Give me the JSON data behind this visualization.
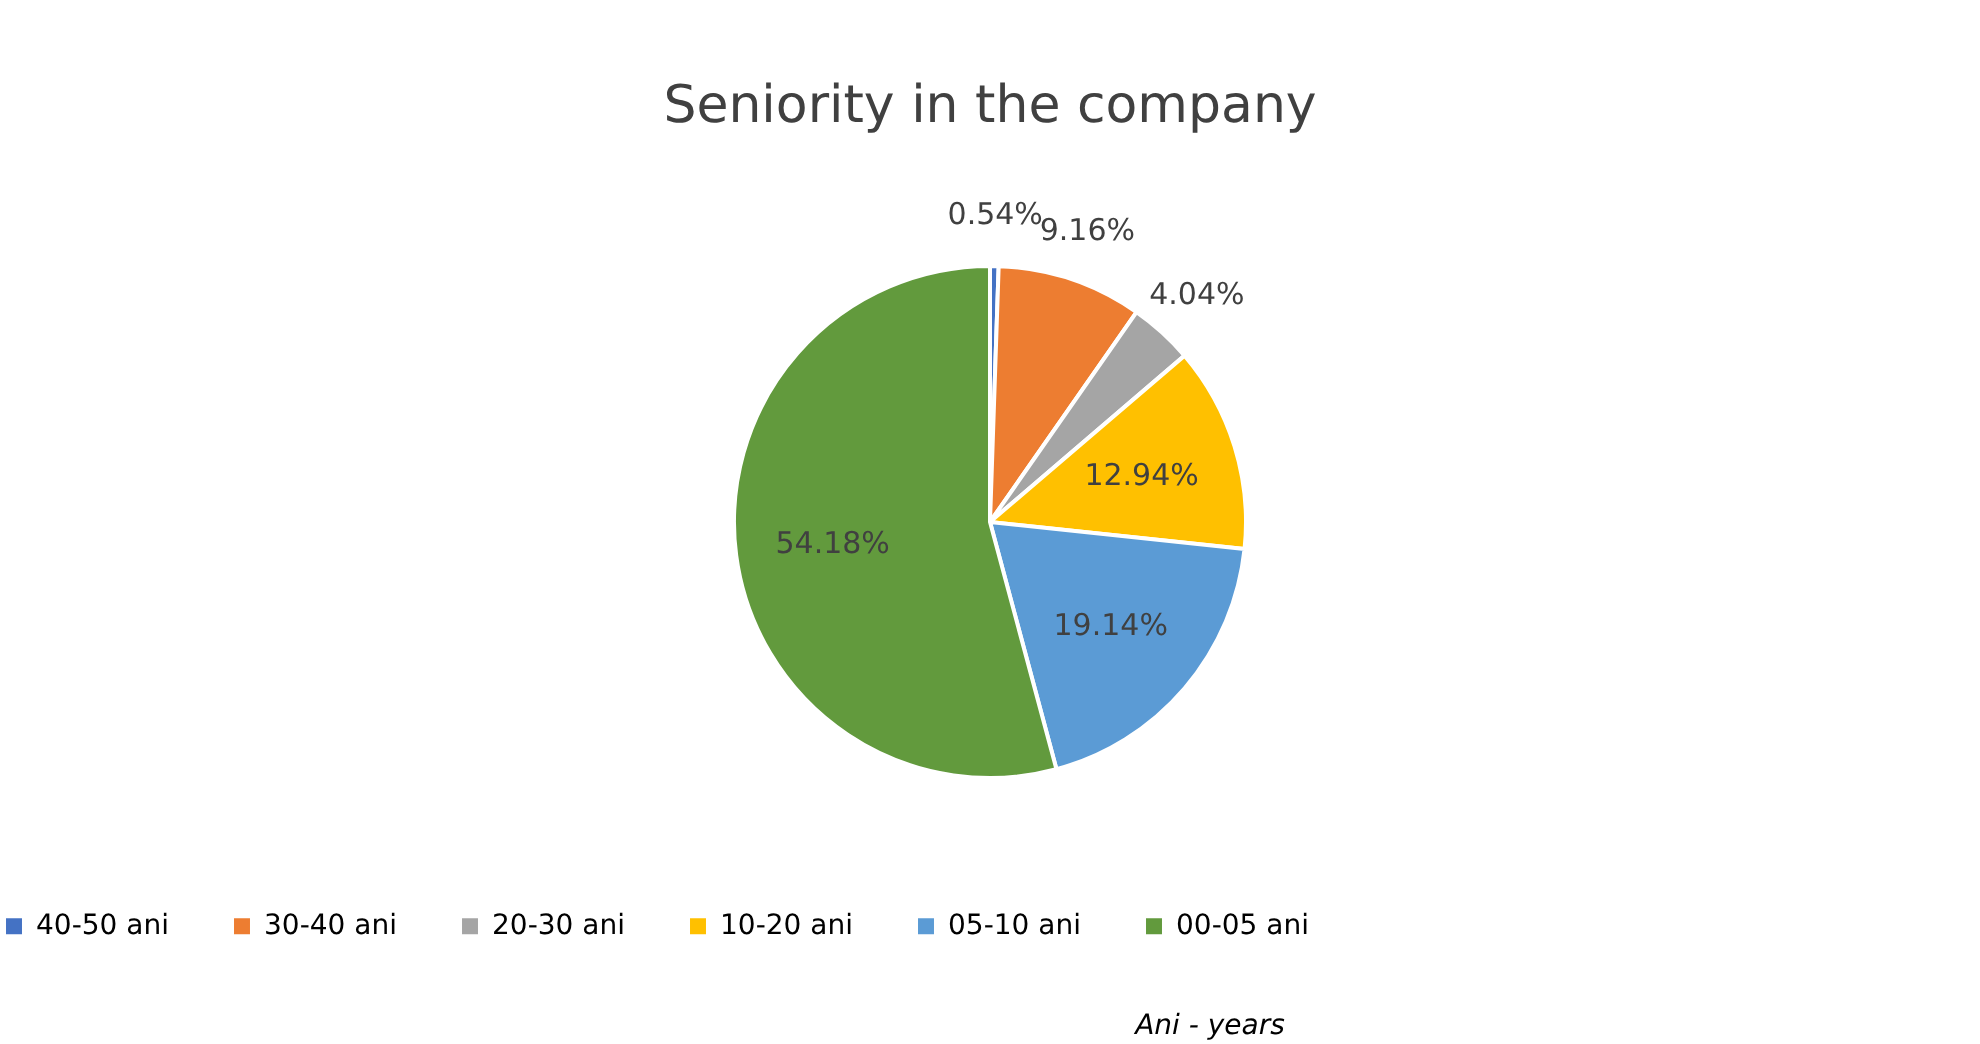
{
  "chart_data": {
    "type": "pie",
    "title": "Seniority in the company",
    "categories": [
      "40-50 ani",
      "30-40 ani",
      "20-30 ani",
      "10-20 ani",
      "05-10 ani",
      "00-05 ani"
    ],
    "values": [
      0.54,
      9.16,
      4.04,
      12.94,
      19.14,
      54.18
    ],
    "colors": [
      "#4472c4",
      "#ed7d31",
      "#a5a5a5",
      "#ffc000",
      "#5b9bd5",
      "#629a3d"
    ],
    "value_labels": [
      "0.54%",
      "9.16%",
      "4.04%",
      "12.94%",
      "19.14%",
      "54.18%"
    ],
    "legend": "bottom",
    "annotations": [
      "Ani - years"
    ]
  }
}
